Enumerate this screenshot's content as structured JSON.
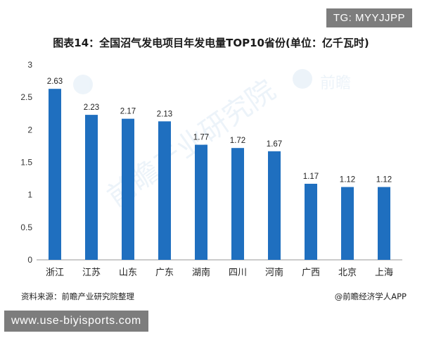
{
  "tag": "TG: MYYJJPP",
  "source": "资料来源：前瞻产业研究院整理",
  "credit": "@前瞻经济学人APP",
  "url_banner": "www.use-biyisports.com",
  "colors": {
    "bar": "#1f6fbf",
    "axis": "#999999",
    "text": "#222222",
    "banner": "#7d7d7d"
  },
  "chart_data": {
    "type": "bar",
    "title": "图表14：全国沼气发电项目年发电量TOP10省份(单位：亿千瓦时)",
    "categories": [
      "浙江",
      "江苏",
      "山东",
      "广东",
      "湖南",
      "四川",
      "河南",
      "广西",
      "北京",
      "上海"
    ],
    "values": [
      2.63,
      2.23,
      2.17,
      2.13,
      1.77,
      1.72,
      1.67,
      1.17,
      1.12,
      1.12
    ],
    "data_labels": [
      "2.63",
      "2.23",
      "2.17",
      "2.13",
      "1.77",
      "1.72",
      "1.67",
      "1.17",
      "1.12",
      "1.12"
    ],
    "y_ticks": [
      "0",
      "0.5",
      "1",
      "1.5",
      "2",
      "2.5",
      "3"
    ],
    "ylim": [
      0,
      3
    ],
    "xlabel": "",
    "ylabel": "",
    "grid": false,
    "legend": "none"
  }
}
